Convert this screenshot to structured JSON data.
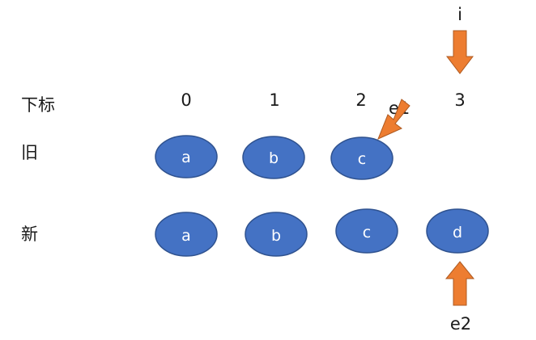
{
  "rows": {
    "index_label": "下标",
    "old_label": "旧",
    "new_label": "新"
  },
  "indices": [
    "0",
    "1",
    "2",
    "3"
  ],
  "old_nodes": [
    "a",
    "b",
    "c"
  ],
  "new_nodes": [
    "a",
    "b",
    "c",
    "d"
  ],
  "pointers": {
    "i": "i",
    "e1": "e1",
    "e2": "e2"
  },
  "colors": {
    "node_fill": "#4472C4",
    "node_stroke": "#2F528F",
    "arrow_fill": "#ED7D31"
  }
}
